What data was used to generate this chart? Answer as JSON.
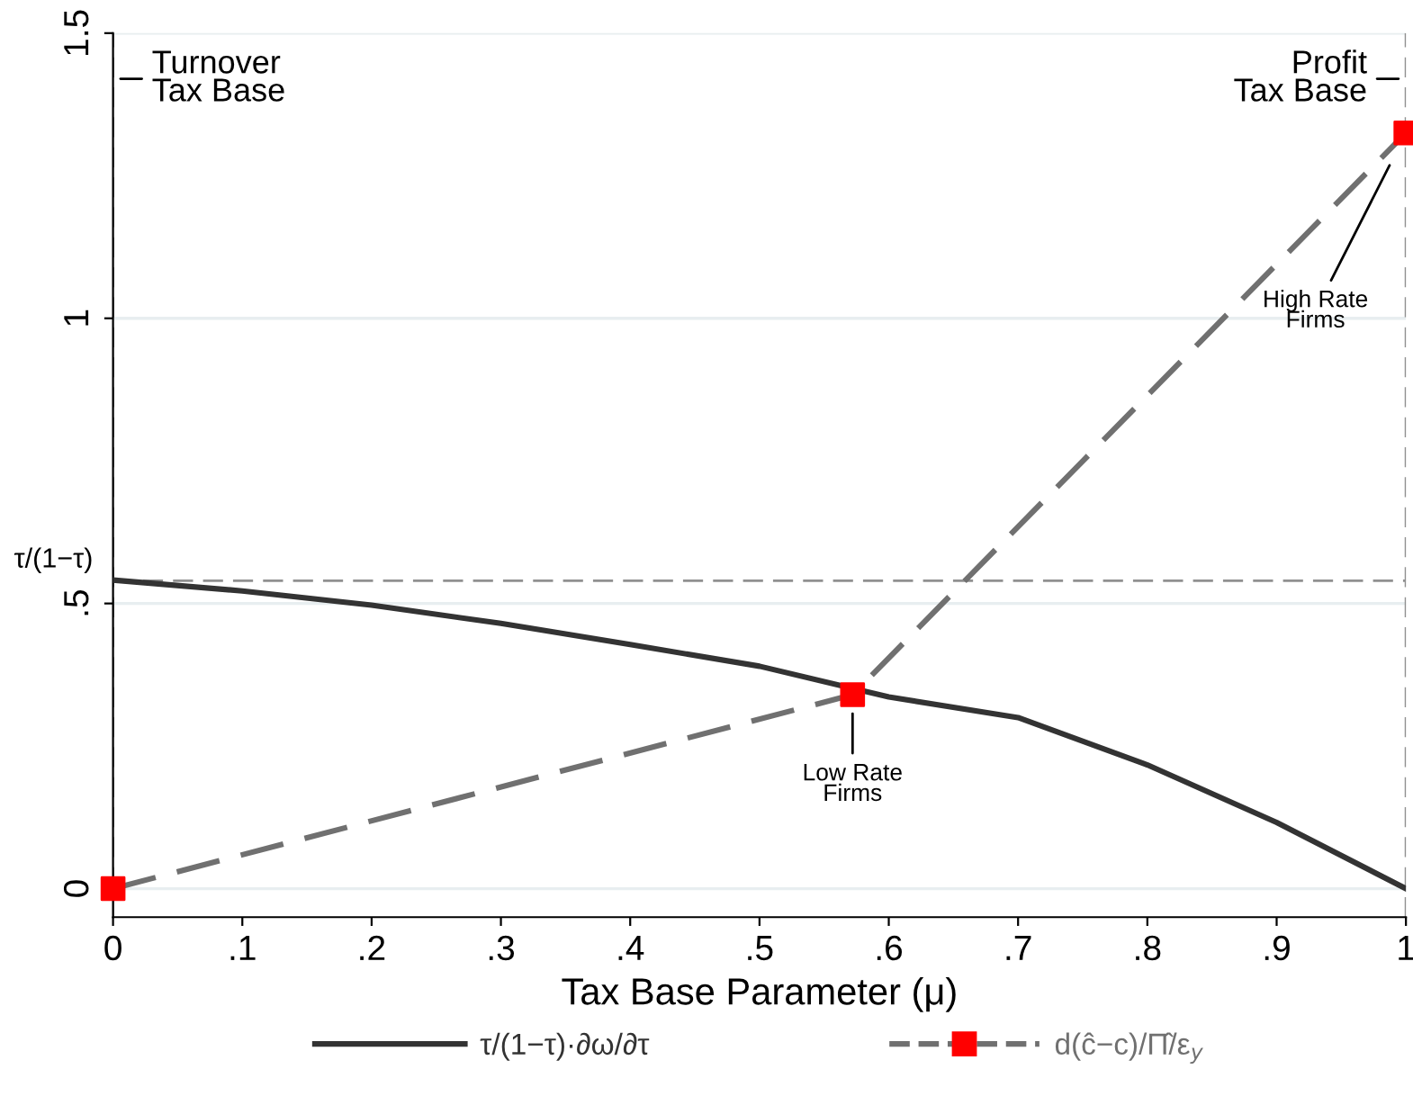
{
  "chart_data": {
    "type": "line",
    "xlabel": "Tax Base Parameter (μ)",
    "xlim": [
      0,
      1
    ],
    "ylim": [
      -0.05,
      1.5
    ],
    "xticks": [
      0,
      {
        "value": 0.1,
        "label": ".1"
      },
      {
        "value": 0.2,
        "label": ".2"
      },
      {
        "value": 0.3,
        "label": ".3"
      },
      {
        "value": 0.4,
        "label": ".4"
      },
      {
        "value": 0.5,
        "label": ".5"
      },
      {
        "value": 0.6,
        "label": ".6"
      },
      {
        "value": 0.7,
        "label": ".7"
      },
      {
        "value": 0.8,
        "label": ".8"
      },
      {
        "value": 0.9,
        "label": ".9"
      },
      1
    ],
    "yticks": [
      0,
      {
        "value": 0.5,
        "label": ".5"
      },
      1,
      1.5
    ],
    "grid": "y",
    "legend": "bottom",
    "series": [
      {
        "name": "τ/(1−τ)·∂ω/∂τ",
        "color": "#333333",
        "line_style": "solid",
        "marker": "none",
        "x": [
          0,
          0.1,
          0.2,
          0.3,
          0.4,
          0.5,
          0.6,
          0.7,
          0.8,
          0.9,
          1
        ],
        "values": [
          0.541,
          0.522,
          0.497,
          0.465,
          0.428,
          0.39,
          0.336,
          0.3,
          0.217,
          0.116,
          0
        ]
      },
      {
        "name": "d(ĉ−c)/Π̂/ε$_{y}$",
        "color": "#707070",
        "line_style": "dashed",
        "x": [
          0,
          0.572,
          1
        ],
        "values": [
          0,
          0.34,
          1.325
        ]
      },
      {
        "type": "scatter",
        "color": "#ff0000",
        "marker": "square",
        "x": [
          0,
          0.572,
          1
        ],
        "values": [
          0,
          0.34,
          1.325
        ]
      }
    ],
    "ref_lines": [
      {
        "axis": "x",
        "value": 0,
        "color": "#909090",
        "line_style": "dashed"
      },
      {
        "axis": "x",
        "value": 1,
        "color": "#909090",
        "line_style": "dashed"
      },
      {
        "axis": "y",
        "value": 0.54,
        "color": "#909090",
        "line_style": "dashed",
        "label": "τ/(1−τ)"
      }
    ],
    "annotations": [
      {
        "text": "Turnover\nTax Base",
        "x": 0,
        "y": 1.42
      },
      {
        "text": "Profit\nTax Base",
        "x": 1,
        "y": 1.42
      },
      {
        "text": "High Rate\nFirms",
        "x": 0.99,
        "y": 1.28
      },
      {
        "text": "Low Rate\nFirms",
        "x": 0.572,
        "y": 0.32
      }
    ]
  }
}
